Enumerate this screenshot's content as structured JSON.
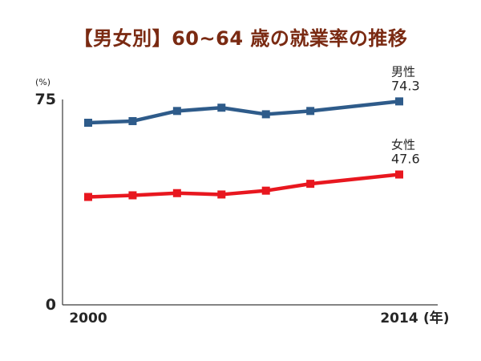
{
  "chart_data": {
    "type": "line",
    "title": "【男女別】60~64 歳の就業率の推移",
    "y_unit": "(%)",
    "x_unit": "(年)",
    "x": [
      2000,
      2001,
      2002,
      2003,
      2004,
      2005,
      2006,
      2007,
      2008,
      2009,
      2010,
      2011,
      2012,
      2013,
      2014
    ],
    "x_tick_labels": [
      {
        "x": 2000,
        "label": "2000"
      },
      {
        "x": 2014,
        "label": "2014"
      }
    ],
    "y_ticks": [
      0,
      75
    ],
    "ylim": [
      0,
      75
    ],
    "xlim": [
      2000,
      2014
    ],
    "grid": false,
    "series": [
      {
        "name": "男性",
        "color": "#2e5b8a",
        "end_label": "74.3",
        "points": [
          {
            "x": 2000,
            "y": 66.5
          },
          {
            "x": 2002,
            "y": 67.1
          },
          {
            "x": 2004,
            "y": 70.8
          },
          {
            "x": 2006,
            "y": 72.0
          },
          {
            "x": 2008,
            "y": 69.6
          },
          {
            "x": 2010,
            "y": 70.8
          },
          {
            "x": 2014,
            "y": 74.3
          }
        ]
      },
      {
        "name": "女性",
        "color": "#e8171f",
        "end_label": "47.6",
        "points": [
          {
            "x": 2000,
            "y": 39.4
          },
          {
            "x": 2002,
            "y": 40.0
          },
          {
            "x": 2004,
            "y": 40.8
          },
          {
            "x": 2006,
            "y": 40.3
          },
          {
            "x": 2008,
            "y": 41.7
          },
          {
            "x": 2010,
            "y": 44.2
          },
          {
            "x": 2014,
            "y": 47.6
          }
        ]
      }
    ]
  }
}
